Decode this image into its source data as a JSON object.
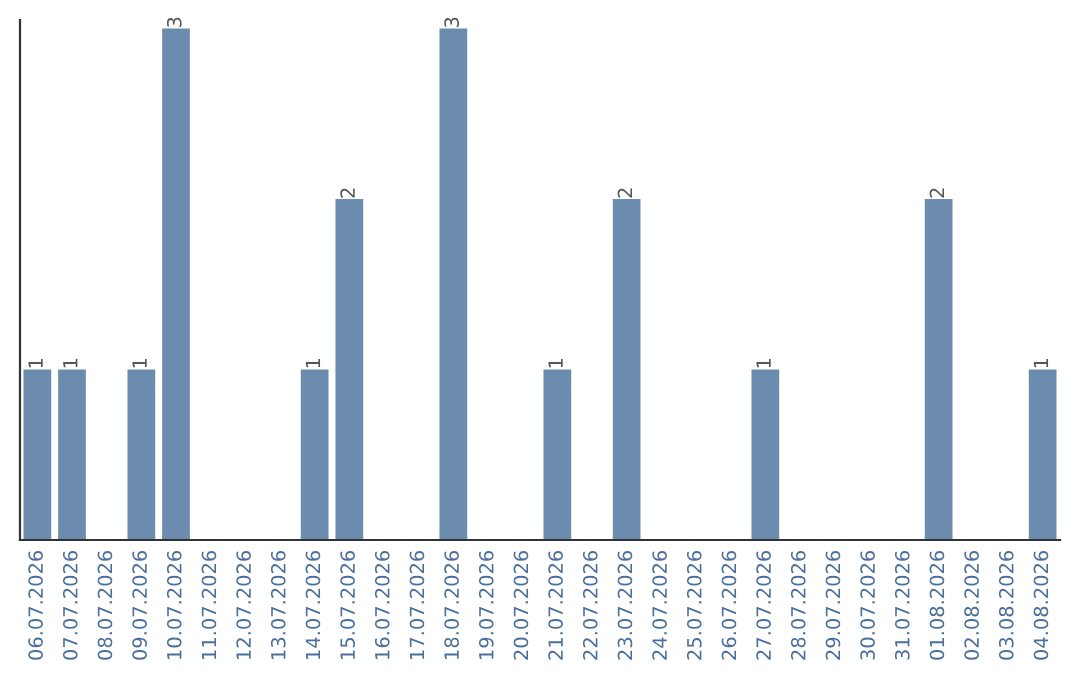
{
  "chart_data": {
    "type": "bar",
    "categories": [
      "06.07.2026",
      "07.07.2026",
      "08.07.2026",
      "09.07.2026",
      "10.07.2026",
      "11.07.2026",
      "12.07.2026",
      "13.07.2026",
      "14.07.2026",
      "15.07.2026",
      "16.07.2026",
      "17.07.2026",
      "18.07.2026",
      "19.07.2026",
      "20.07.2026",
      "21.07.2026",
      "22.07.2026",
      "23.07.2026",
      "24.07.2026",
      "25.07.2026",
      "26.07.2026",
      "27.07.2026",
      "28.07.2026",
      "29.07.2026",
      "30.07.2026",
      "31.07.2026",
      "01.08.2026",
      "02.08.2026",
      "03.08.2026",
      "04.08.2026"
    ],
    "values": [
      1,
      1,
      0,
      1,
      3,
      0,
      0,
      0,
      1,
      2,
      0,
      0,
      3,
      0,
      0,
      1,
      0,
      2,
      0,
      0,
      0,
      1,
      0,
      0,
      0,
      0,
      2,
      0,
      0,
      1
    ],
    "value_labels": [
      "1",
      "1",
      null,
      "1",
      "3",
      null,
      null,
      null,
      "1",
      "2",
      null,
      null,
      "3",
      null,
      null,
      "1",
      null,
      "2",
      null,
      null,
      null,
      "1",
      null,
      null,
      null,
      null,
      "2",
      null,
      null,
      "1"
    ],
    "color": "#6b8cae",
    "ylim": [
      0,
      3.05
    ],
    "tick_labels": "x",
    "grid": false,
    "legend": false
  }
}
